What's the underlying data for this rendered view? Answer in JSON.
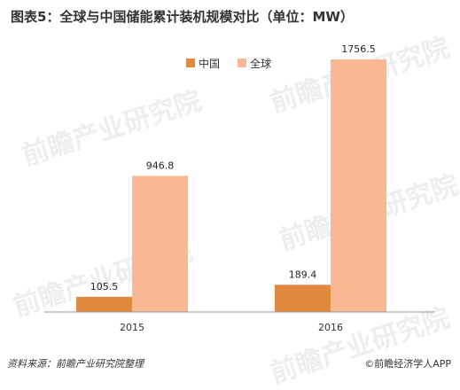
{
  "title": "图表5：全球与中国储能累计装机规模对比（单位：MW）",
  "footer": {
    "source": "资料来源：前瞻产业研究院整理",
    "brand_icon": "copyright-icon",
    "brand": "前瞻经济学人APP"
  },
  "watermark": "前瞻产业研究院",
  "colors": {
    "china": "#E0893F",
    "global": "#F7B893",
    "axis": "#999999"
  },
  "chart_data": {
    "type": "bar",
    "categories": [
      "2015",
      "2016"
    ],
    "series": [
      {
        "name": "中国",
        "values": [
          105.5,
          189.4
        ]
      },
      {
        "name": "全球",
        "values": [
          946.8,
          1756.5
        ]
      }
    ],
    "value_labels": [
      [
        "105.5",
        "189.4"
      ],
      [
        "946.8",
        "1756.5"
      ]
    ],
    "xlabel": "",
    "ylabel": "",
    "ylim": [
      0,
      1800
    ],
    "grid": false,
    "legend": "top-center"
  }
}
